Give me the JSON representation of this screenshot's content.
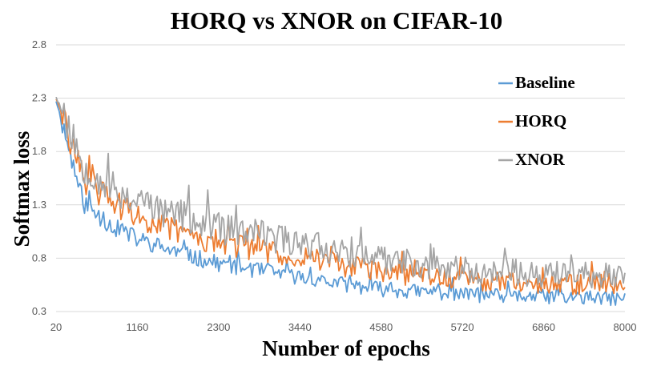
{
  "chart_data": {
    "type": "line",
    "title": "HORQ  vs  XNOR on CIFAR-10",
    "xlabel": "Number of epochs",
    "ylabel": "Softmax loss",
    "xlim": [
      20,
      8000
    ],
    "ylim": [
      0.3,
      2.8
    ],
    "xticks": [
      20,
      1160,
      2300,
      3440,
      4580,
      5720,
      6860,
      8000
    ],
    "xtick_labels": [
      "20",
      "1160",
      "2300",
      "3440",
      "4580",
      "5720",
      "6860",
      "8000"
    ],
    "yticks": [
      0.3,
      0.8,
      1.3,
      1.8,
      2.3,
      2.8
    ],
    "ytick_labels": [
      "0.3",
      "0.8",
      "1.3",
      "1.8",
      "2.3",
      "2.8"
    ],
    "grid": true,
    "legend_position": "right",
    "x": [
      20,
      400,
      800,
      1160,
      1600,
      2000,
      2300,
      2800,
      3440,
      4000,
      4580,
      5200,
      5720,
      6300,
      6860,
      7400,
      8000
    ],
    "series": [
      {
        "name": "Baseline",
        "color": "#5b9bd5",
        "values": [
          2.28,
          1.32,
          1.1,
          0.98,
          0.88,
          0.8,
          0.75,
          0.69,
          0.62,
          0.56,
          0.51,
          0.48,
          0.46,
          0.44,
          0.44,
          0.43,
          0.42
        ]
      },
      {
        "name": "HORQ",
        "color": "#ed7d31",
        "values": [
          2.3,
          1.55,
          1.33,
          1.18,
          1.08,
          1.0,
          0.95,
          0.88,
          0.82,
          0.74,
          0.67,
          0.63,
          0.6,
          0.58,
          0.56,
          0.56,
          0.56
        ]
      },
      {
        "name": "XNOR",
        "color": "#a5a5a5",
        "values": [
          2.32,
          1.68,
          1.45,
          1.33,
          1.23,
          1.14,
          1.08,
          1.02,
          0.95,
          0.87,
          0.78,
          0.73,
          0.69,
          0.67,
          0.65,
          0.64,
          0.63
        ]
      }
    ]
  }
}
